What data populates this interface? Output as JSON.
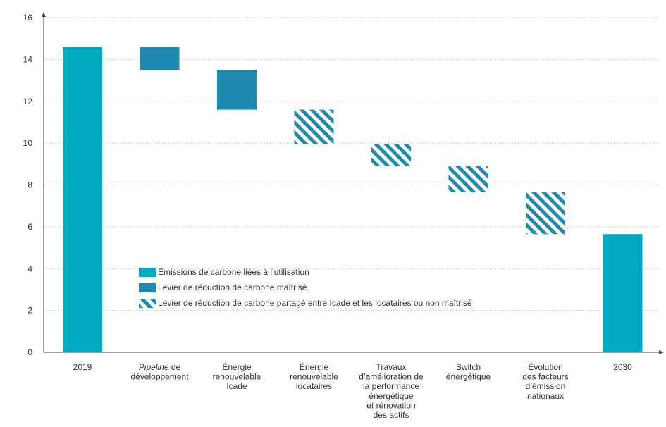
{
  "chart_data": {
    "type": "bar",
    "subtype": "waterfall",
    "ylim": [
      0,
      16
    ],
    "yticks": [
      "0",
      "2",
      "4",
      "6",
      "8",
      "10",
      "12",
      "14",
      "16"
    ],
    "grid": true,
    "categories": [
      {
        "lines": [
          "2019"
        ]
      },
      {
        "lines": [
          "Pipeline de",
          "développement"
        ],
        "italic_word": "Pipeline"
      },
      {
        "lines": [
          "Énergie",
          "renouvelable",
          "Icade"
        ]
      },
      {
        "lines": [
          "Énergie",
          "renouvelable",
          "locataires"
        ]
      },
      {
        "lines": [
          "Travaux",
          "d’amélioration de",
          "la performance",
          "énergétique",
          "et rénovation",
          "des actifs"
        ]
      },
      {
        "lines": [
          "Switch",
          "énergétique"
        ]
      },
      {
        "lines": [
          "Évolution",
          "des facteurs",
          "d’émission",
          "nationaux"
        ]
      },
      {
        "lines": [
          "2030"
        ]
      }
    ],
    "bars": [
      {
        "kind": "total",
        "low": 0,
        "high": 14.6
      },
      {
        "kind": "controlled",
        "low": 13.5,
        "high": 14.6
      },
      {
        "kind": "controlled",
        "low": 11.6,
        "high": 13.5
      },
      {
        "kind": "shared",
        "low": 9.95,
        "high": 11.6
      },
      {
        "kind": "shared",
        "low": 8.9,
        "high": 9.95
      },
      {
        "kind": "shared",
        "low": 7.65,
        "high": 8.9
      },
      {
        "kind": "shared",
        "low": 5.65,
        "high": 7.65
      },
      {
        "kind": "total",
        "low": 0,
        "high": 5.65
      }
    ],
    "legend": {
      "placement": "center",
      "items": [
        {
          "kind": "total",
          "label": "Émissions de carbone liées à l’utilisation"
        },
        {
          "kind": "controlled",
          "label": "Levier de réduction de carbone maîtrisé"
        },
        {
          "kind": "shared",
          "label": "Levier de réduction de carbone partagé entre Icade et les locataires ou non maîtrisé"
        }
      ]
    },
    "colors": {
      "total": "#00aac3",
      "controlled": "#1e8ab0",
      "shared": "#1e8ab0",
      "grid": "#cccccc",
      "axis": "#444444"
    }
  }
}
